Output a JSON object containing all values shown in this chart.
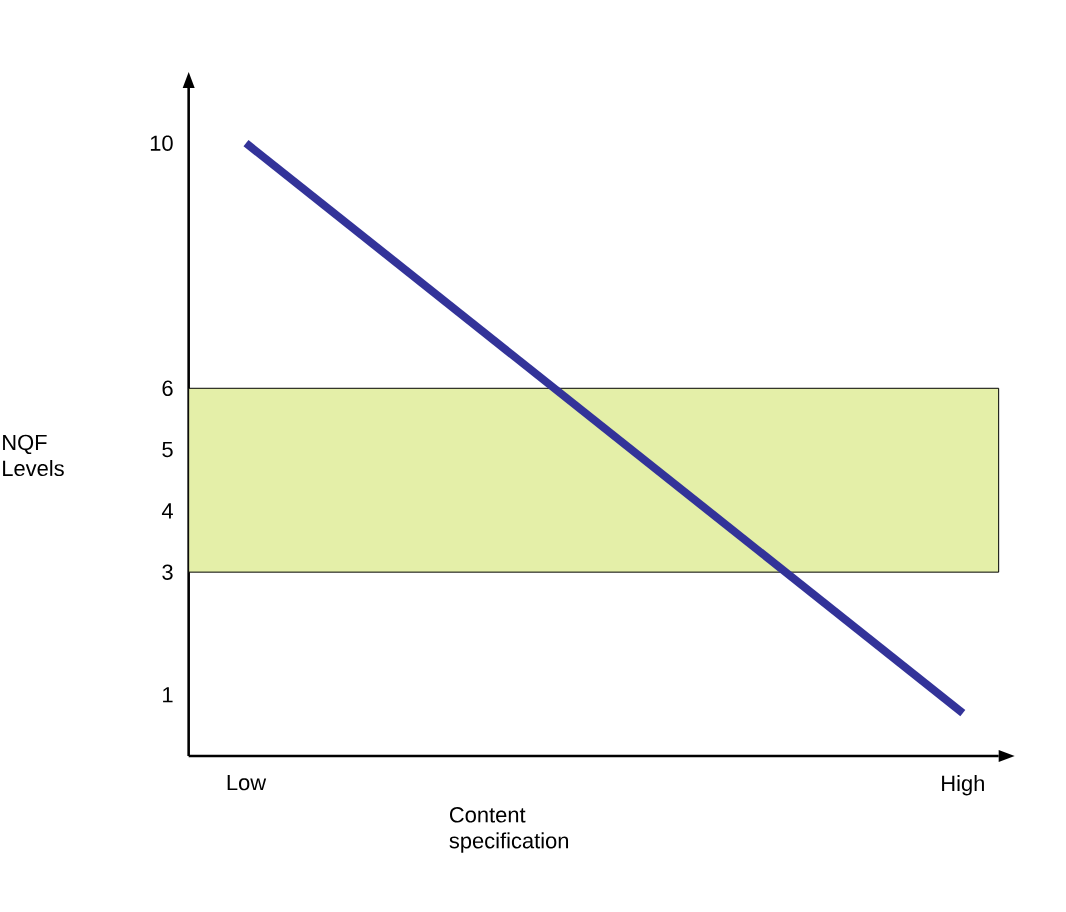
{
  "chart_data": {
    "type": "line",
    "xlabel": "Content specification",
    "ylabel": "NQF Levels",
    "categories": [
      "Low",
      "High"
    ],
    "series": [
      {
        "color": "#333399",
        "values": [
          10,
          0.7
        ]
      }
    ],
    "ylim": [
      0,
      10.9
    ],
    "yticks": [
      1,
      3,
      4,
      5,
      6,
      10
    ],
    "bands": [
      {
        "axis": "y",
        "from": 3,
        "to": 6,
        "color": "#e4efa8"
      }
    ],
    "grid": false,
    "marker": "none",
    "line_style": "solid"
  }
}
